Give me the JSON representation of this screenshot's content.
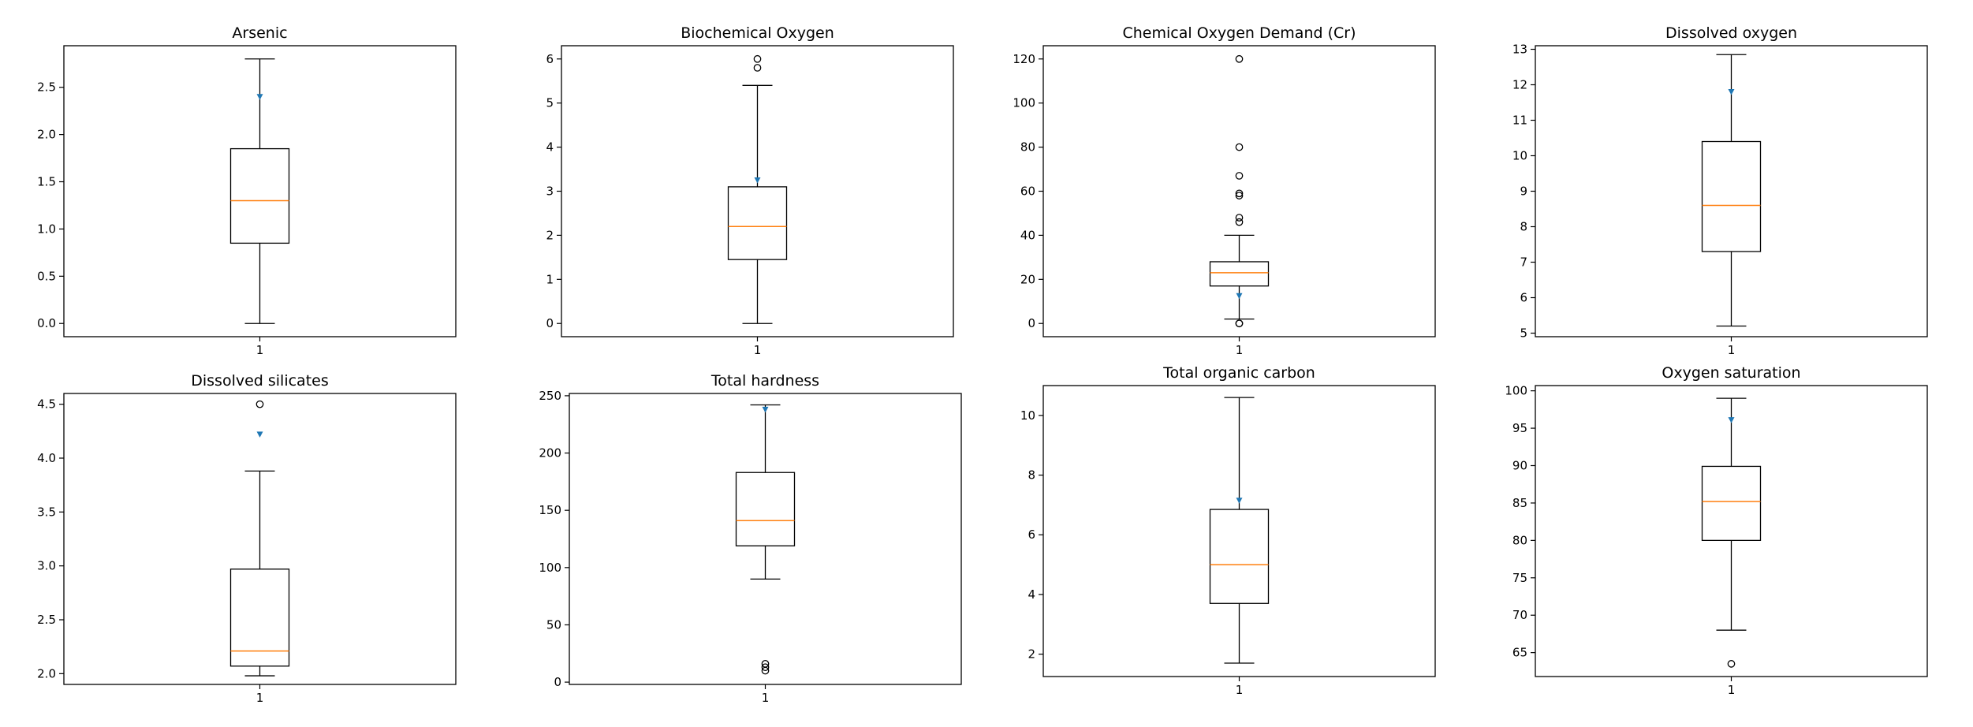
{
  "chart_data": [
    {
      "type": "box",
      "title": "Arsenic",
      "ylim": [
        -0.14,
        2.94
      ],
      "yticks": [
        "0.0",
        "0.5",
        "1.0",
        "1.5",
        "2.0",
        "2.5"
      ],
      "xticks": [
        "1"
      ],
      "box": {
        "whisker_low": 0.0,
        "q1": 0.85,
        "median": 1.3,
        "q3": 1.85,
        "whisker_high": 2.8,
        "mean": 2.4,
        "outliers": []
      }
    },
    {
      "type": "box",
      "title": "Biochemical Oxygen",
      "ylim": [
        -0.3,
        6.3
      ],
      "yticks": [
        "0",
        "1",
        "2",
        "3",
        "4",
        "5",
        "6"
      ],
      "xticks": [
        "1"
      ],
      "box": {
        "whisker_low": 0.0,
        "q1": 1.45,
        "median": 2.2,
        "q3": 3.1,
        "whisker_high": 5.4,
        "mean": 3.25,
        "outliers": [
          5.8,
          6.0
        ]
      }
    },
    {
      "type": "box",
      "title": "Chemical Oxygen Demand (Cr)",
      "ylim": [
        -6,
        126
      ],
      "yticks": [
        "0",
        "20",
        "40",
        "60",
        "80",
        "100",
        "120"
      ],
      "xticks": [
        "1"
      ],
      "box": {
        "whisker_low": 2,
        "q1": 17,
        "median": 23,
        "q3": 28,
        "whisker_high": 40,
        "mean": 12.5,
        "outliers": [
          0,
          0,
          46,
          48,
          58,
          59,
          67,
          80,
          120
        ]
      }
    },
    {
      "type": "box",
      "title": "Dissolved oxygen",
      "ylim": [
        4.9,
        13.1
      ],
      "yticks": [
        "5",
        "6",
        "7",
        "8",
        "9",
        "10",
        "11",
        "12",
        "13"
      ],
      "xticks": [
        "1"
      ],
      "box": {
        "whisker_low": 5.2,
        "q1": 7.3,
        "median": 8.6,
        "q3": 10.4,
        "whisker_high": 12.85,
        "mean": 11.8,
        "outliers": []
      }
    },
    {
      "type": "box",
      "title": "Dissolved silicates",
      "ylim": [
        1.9,
        4.6
      ],
      "yticks": [
        "2.0",
        "2.5",
        "3.0",
        "3.5",
        "4.0",
        "4.5"
      ],
      "xticks": [
        "1"
      ],
      "box": {
        "whisker_low": 1.98,
        "q1": 2.07,
        "median": 2.21,
        "q3": 2.97,
        "whisker_high": 3.88,
        "mean": 4.22,
        "outliers": [
          4.5
        ]
      }
    },
    {
      "type": "box",
      "title": "Total hardness",
      "ylim": [
        -2,
        252
      ],
      "yticks": [
        "0",
        "50",
        "100",
        "150",
        "200",
        "250"
      ],
      "xticks": [
        "1"
      ],
      "box": {
        "whisker_low": 90,
        "q1": 119,
        "median": 141,
        "q3": 183,
        "whisker_high": 242,
        "mean": 238,
        "outliers": [
          10,
          13,
          16
        ]
      }
    },
    {
      "type": "box",
      "title": "Total organic carbon",
      "ylim": [
        1.25,
        11.0
      ],
      "yticks": [
        "2",
        "4",
        "6",
        "8",
        "10"
      ],
      "xticks": [
        "1"
      ],
      "box": {
        "whisker_low": 1.7,
        "q1": 3.7,
        "median": 5.0,
        "q3": 6.85,
        "whisker_high": 10.6,
        "mean": 7.15,
        "outliers": []
      }
    },
    {
      "type": "box",
      "title": "Oxygen saturation",
      "ylim": [
        61.8,
        100.7
      ],
      "yticks": [
        "65",
        "70",
        "75",
        "80",
        "85",
        "90",
        "95",
        "100"
      ],
      "xticks": [
        "1"
      ],
      "box": {
        "whisker_low": 68,
        "q1": 80,
        "median": 85.2,
        "q3": 89.9,
        "whisker_high": 99,
        "mean": 96.1,
        "outliers": [
          63.5
        ]
      }
    }
  ],
  "colors": {
    "median": "#ff7f0e",
    "mean": "#1f77b4",
    "box": "#000000"
  }
}
